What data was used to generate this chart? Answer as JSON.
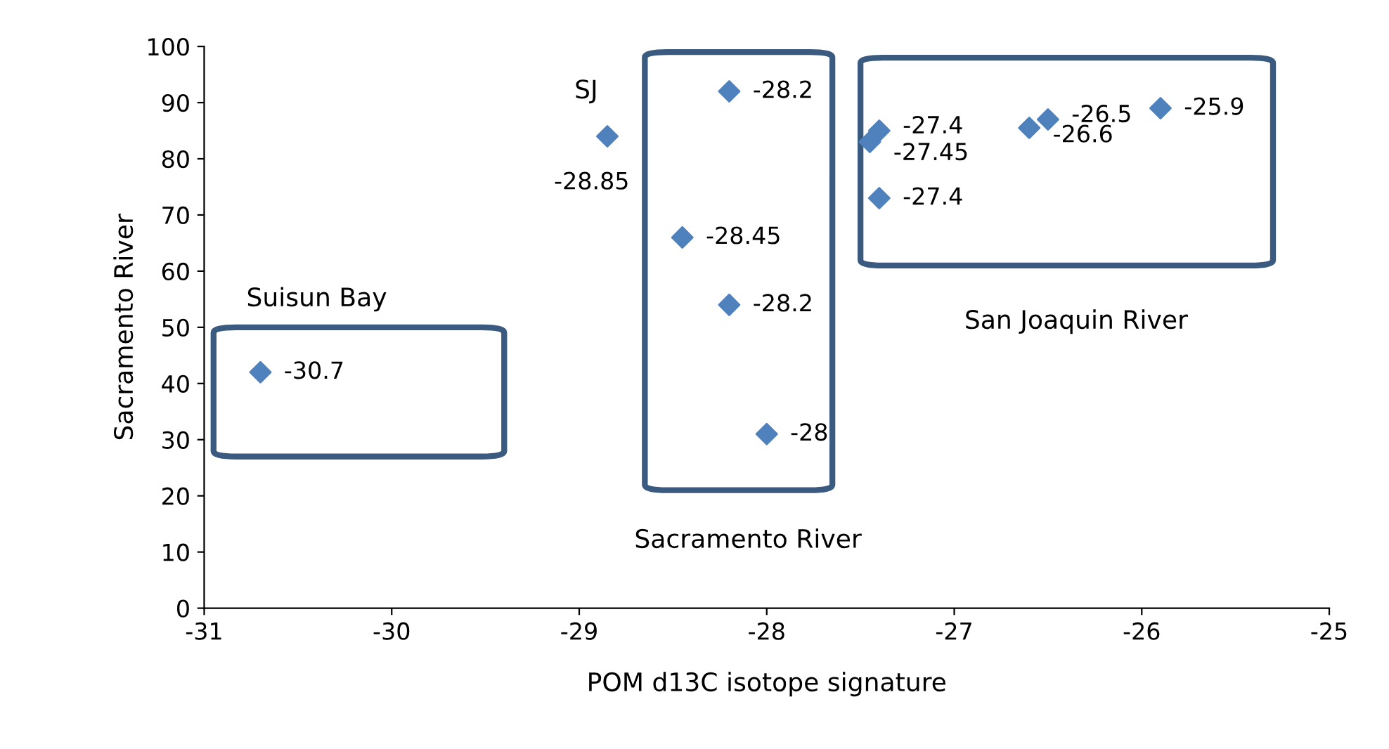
{
  "chart_data": {
    "type": "scatter",
    "xlabel": "POM d13C isotope signature",
    "ylabel": "Sacramento River",
    "x": [
      -30.7,
      -28.85,
      -28.2,
      -28.45,
      -28.2,
      -28,
      -27.45,
      -27.4,
      -27.4,
      -26.6,
      -26.5,
      -25.9
    ],
    "series": [
      {
        "color": "#4f81bd",
        "values": [
          42,
          84,
          92,
          66,
          54,
          31,
          83,
          85,
          73,
          85.5,
          87,
          89
        ]
      }
    ],
    "annotations": [
      {
        "text": "-30.7",
        "x": -30.7,
        "y": 42
      },
      {
        "text": "-28.85",
        "x": -28.85,
        "y": 84
      },
      {
        "text": "-28.2",
        "x": -28.2,
        "y": 92
      },
      {
        "text": "-28.45",
        "x": -28.45,
        "y": 66
      },
      {
        "text": "-28.2",
        "x": -28.2,
        "y": 54
      },
      {
        "text": "-28",
        "x": -28,
        "y": 31
      },
      {
        "text": "-27.45",
        "x": -27.45,
        "y": 83
      },
      {
        "text": "-27.4",
        "x": -27.4,
        "y": 85
      },
      {
        "text": "-27.4",
        "x": -27.4,
        "y": 73
      },
      {
        "text": "-26.6",
        "x": -26.6,
        "y": 85.5
      },
      {
        "text": "-26.5",
        "x": -26.5,
        "y": 87
      },
      {
        "text": "-25.9",
        "x": -25.9,
        "y": 89
      },
      "SJ",
      "Suisun Bay",
      "Sacramento River",
      "San Joaquin River"
    ],
    "xlim": [
      -31,
      -25
    ],
    "xticks": [
      -31,
      -30,
      -29,
      -28,
      -27,
      -26,
      -25
    ],
    "ylim": [
      0,
      100
    ],
    "yticks": [
      0,
      10,
      20,
      30,
      40,
      50,
      60,
      70,
      80,
      90,
      100
    ],
    "marker": "diamond",
    "grid": false,
    "legend": false
  }
}
